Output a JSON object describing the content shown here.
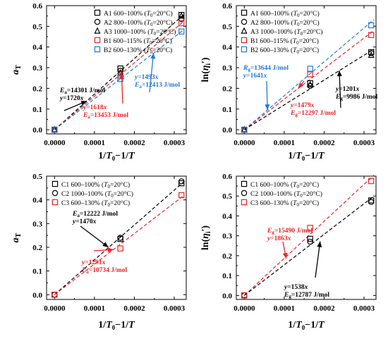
{
  "chart_data": [
    {
      "type": "scatter",
      "xlabel": "1/T₀−1/T",
      "ylabel": "aT",
      "xlim": [
        -2e-05,
        0.00033
      ],
      "ylim": [
        -0.02,
        0.6
      ],
      "xticks": [
        "0.0000",
        "0.0001",
        "0.0002",
        "0.0003"
      ],
      "yticks": [
        "0.0",
        "0.1",
        "0.2",
        "0.3",
        "0.4",
        "0.5",
        "0.6"
      ],
      "legend_position": "top-right",
      "series": [
        {
          "name": "A1 600–100% (T0=20°C)",
          "marker": "square",
          "color": "#000000",
          "points": [
            [
              0,
              0
            ],
            [
              0.000165,
              0.296
            ],
            [
              0.000318,
              0.555
            ]
          ]
        },
        {
          "name": "A2 800–100% (T0=20°C)",
          "marker": "circle",
          "color": "#000000",
          "points": [
            [
              0,
              0
            ],
            [
              0.000165,
              0.285
            ],
            [
              0.000318,
              0.535
            ]
          ]
        },
        {
          "name": "A3 1000–100% (T0=20°C)",
          "marker": "triangle",
          "color": "#000000",
          "points": [
            [
              0,
              0
            ],
            [
              0.000165,
              0.275
            ],
            [
              0.000318,
              0.55
            ]
          ]
        },
        {
          "name": "B1 600–115% (T0=20°C)",
          "marker": "square",
          "color": "#ee2222",
          "points": [
            [
              0,
              0
            ],
            [
              0.000165,
              0.262
            ],
            [
              0.000318,
              0.515
            ]
          ]
        },
        {
          "name": "B2 600–130% (T0=20°C)",
          "marker": "square",
          "color": "#2277dd",
          "points": [
            [
              0,
              0
            ],
            [
              0.000165,
              0.245
            ],
            [
              0.000318,
              0.475
            ]
          ]
        }
      ],
      "fits": [
        {
          "slope": 1720,
          "color": "#000000"
        },
        {
          "slope": 1618,
          "color": "#ee2222"
        },
        {
          "slope": 1493,
          "color": "#2277dd"
        }
      ],
      "annotations": [
        {
          "lines": [
            "Ea=14301 J/mol",
            "y=1720x"
          ],
          "color": "#000000",
          "arrow_to": [
            8.1e-05,
            0.139
          ]
        },
        {
          "lines": [
            "y=1618x",
            "Ea=13453 J/mol"
          ],
          "color": "#ee2222",
          "arrow_to": [
            0.000168,
            0.272
          ]
        },
        {
          "lines": [
            "y=1493x",
            "Ea=12413 J/mol"
          ],
          "color": "#2277dd",
          "arrow_to": [
            0.000248,
            0.371
          ]
        }
      ]
    },
    {
      "type": "scatter",
      "xlabel": "1/T₀−1/T",
      "ylabel": "ln(ηi′)",
      "xlim": [
        -2e-05,
        0.00033
      ],
      "ylim": [
        -0.02,
        0.6
      ],
      "xticks": [
        "0.0000",
        "0.0001",
        "0.0002",
        "0.0003"
      ],
      "yticks": [
        "0.0",
        "0.1",
        "0.2",
        "0.3",
        "0.4",
        "0.5",
        "0.6"
      ],
      "legend_position": "top-left",
      "series": [
        {
          "name": "A1 600–100% (T0=20°C)",
          "marker": "square",
          "color": "#000000",
          "points": [
            [
              0,
              0
            ],
            [
              0.000165,
              0.225
            ],
            [
              0.000318,
              0.375
            ]
          ]
        },
        {
          "name": "A2 800–100% (T0=20°C)",
          "marker": "circle",
          "color": "#000000",
          "points": [
            [
              0,
              0
            ],
            [
              0.000165,
              0.212
            ],
            [
              0.000318,
              0.37
            ]
          ]
        },
        {
          "name": "A3 1000–100% (T0=20°C)",
          "marker": "triangle",
          "color": "#000000",
          "points": [
            [
              0,
              0
            ],
            [
              0.000165,
              0.218
            ],
            [
              0.000318,
              0.36
            ]
          ]
        },
        {
          "name": "B1 600–115% (T0=20°C)",
          "marker": "square",
          "color": "#ee2222",
          "points": [
            [
              0,
              0
            ],
            [
              0.000165,
              0.268
            ],
            [
              0.000318,
              0.458
            ]
          ]
        },
        {
          "name": "B2 600–130% (T0=20°C)",
          "marker": "square",
          "color": "#2277dd",
          "points": [
            [
              0,
              0
            ],
            [
              0.000165,
              0.295
            ],
            [
              0.000318,
              0.505
            ]
          ]
        }
      ],
      "fits": [
        {
          "slope": 1641,
          "color": "#2277dd"
        },
        {
          "slope": 1479,
          "color": "#ee2222"
        },
        {
          "slope": 1201,
          "color": "#000000"
        }
      ],
      "annotations": [
        {
          "lines": [
            "Rg=13644 J/mol",
            "y=1641x"
          ],
          "color": "#2277dd",
          "arrow_to": [
            5.8e-05,
            0.095
          ]
        },
        {
          "lines": [
            "y=1479x",
            "Eg=12297 J/mol"
          ],
          "color": "#ee2222",
          "arrow_to": [
            0.000135,
            0.2
          ]
        },
        {
          "lines": [
            "y=1201x",
            "Eg=9986 J/mol"
          ],
          "color": "#000000",
          "arrow_to": [
            0.000238,
            0.286
          ]
        }
      ]
    },
    {
      "type": "scatter",
      "xlabel": "1/T₀−1/T",
      "ylabel": "aT",
      "xlim": [
        -2e-05,
        0.00033
      ],
      "ylim": [
        -0.02,
        0.5
      ],
      "xticks": [
        "0.0000",
        "0.0001",
        "0.0002",
        "0.0003"
      ],
      "yticks": [
        "0.0",
        "0.1",
        "0.2",
        "0.3",
        "0.4",
        "0.5"
      ],
      "legend_position": "top-left",
      "series": [
        {
          "name": "C1 600–100% (T0=20°C)",
          "marker": "square",
          "color": "#000000",
          "points": [
            [
              0,
              0
            ],
            [
              0.000165,
              0.235
            ],
            [
              0.000318,
              0.47
            ]
          ]
        },
        {
          "name": "C2 1000–100% (T0=20°C)",
          "marker": "circle",
          "color": "#000000",
          "points": [
            [
              0,
              0
            ],
            [
              0.000165,
              0.24
            ],
            [
              0.000318,
              0.478
            ]
          ]
        },
        {
          "name": "C3 600–130% (T0=20°C)",
          "marker": "square",
          "color": "#ee2222",
          "points": [
            [
              0,
              0
            ],
            [
              0.000165,
              0.195
            ],
            [
              0.000318,
              0.42
            ]
          ]
        }
      ],
      "fits": [
        {
          "slope": 1470,
          "color": "#000000"
        },
        {
          "slope": 1291,
          "color": "#ee2222"
        }
      ],
      "annotations": [
        {
          "lines": [
            "Ea=12222 J/mol",
            "y=1470x"
          ],
          "color": "#000000",
          "arrow_to": [
            0.000135,
            0.2
          ]
        },
        {
          "lines": [
            "y=1291x",
            "Ea=10734 J/mol"
          ],
          "color": "#ee2222",
          "arrow_to": [
            0.000148,
            0.19
          ]
        }
      ]
    },
    {
      "type": "scatter",
      "xlabel": "1/T₀−1/T",
      "ylabel": "ln(ηi′)",
      "xlim": [
        -2e-05,
        0.00033
      ],
      "ylim": [
        -0.02,
        0.6
      ],
      "xticks": [
        "0.0000",
        "0.0001",
        "0.0002",
        "0.0003"
      ],
      "yticks": [
        "0.0",
        "0.1",
        "0.2",
        "0.3",
        "0.4",
        "0.5",
        "0.6"
      ],
      "legend_position": "top-left",
      "series": [
        {
          "name": "C1 600–100% (T0=20°C)",
          "marker": "square",
          "color": "#000000",
          "points": [
            [
              0,
              0
            ],
            [
              0.000165,
              0.285
            ],
            [
              0.000318,
              0.478
            ]
          ]
        },
        {
          "name": "C2 1000–100% (T0=20°C)",
          "marker": "circle",
          "color": "#000000",
          "points": [
            [
              0,
              0
            ],
            [
              0.000165,
              0.27
            ],
            [
              0.000318,
              0.47
            ]
          ]
        },
        {
          "name": "C3 600–130% (T0=20°C)",
          "marker": "square",
          "color": "#ee2222",
          "points": [
            [
              0,
              0
            ],
            [
              0.000165,
              0.34
            ],
            [
              0.000318,
              0.575
            ]
          ]
        }
      ],
      "fits": [
        {
          "slope": 1863,
          "color": "#ee2222"
        },
        {
          "slope": 1538,
          "color": "#000000"
        }
      ],
      "annotations": [
        {
          "lines": [
            "Eg=15490 J/mol",
            "y=1863x"
          ],
          "color": "#ee2222",
          "arrow_to": [
            0.000105,
            0.185
          ]
        },
        {
          "lines": [
            "y=1538x",
            "Eg=12787 J/mol"
          ],
          "color": "#000000",
          "arrow_to": [
            0.00019,
            0.272
          ]
        }
      ]
    }
  ]
}
